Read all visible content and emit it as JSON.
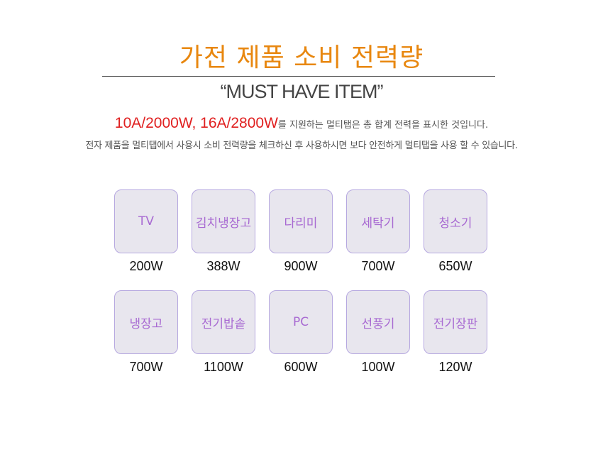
{
  "title": "가전 제품 소비 전력량",
  "subtitle": "“MUST HAVE ITEM”",
  "highlight": "10A/2000W, 16A/2800W",
  "line1_rest": "를 지원하는 멀티탭은 총 합계 전력을 표시한 것입니다.",
  "line2": "전자 제품을 멀티탭에서 사용시 소비 전력량을 체크하신 후 사용하시면 보다 안전하게 멀티탭을 사용 할 수 있습니다.",
  "colors": {
    "title": "#e8870f",
    "highlight": "#e02020",
    "item_text": "#a86ad2",
    "box_bg": "#e8e6ee",
    "box_border": "#b6a8e0"
  },
  "items": [
    {
      "name": "TV",
      "watt": "200W"
    },
    {
      "name": "김치냉장고",
      "watt": "388W"
    },
    {
      "name": "다리미",
      "watt": "900W"
    },
    {
      "name": "세탁기",
      "watt": "700W"
    },
    {
      "name": "청소기",
      "watt": "650W"
    },
    {
      "name": "냉장고",
      "watt": "700W"
    },
    {
      "name": "전기밥솥",
      "watt": "1100W"
    },
    {
      "name": "PC",
      "watt": "600W"
    },
    {
      "name": "선풍기",
      "watt": "100W"
    },
    {
      "name": "전기장판",
      "watt": "120W"
    }
  ]
}
